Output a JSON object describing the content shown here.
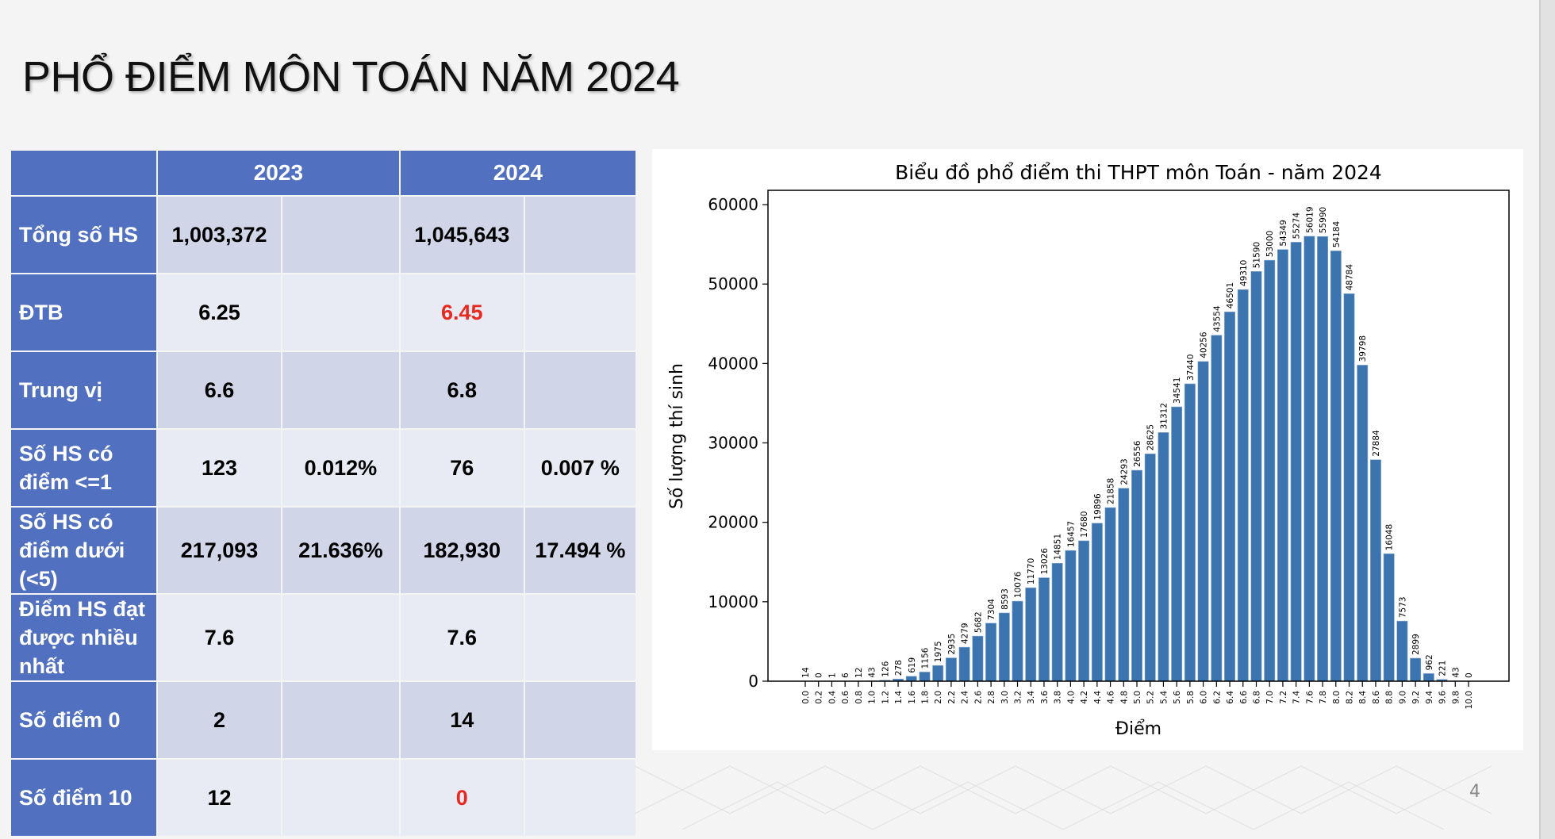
{
  "slide": {
    "title": "PHỔ ĐIỂM MÔN TOÁN NĂM 2024",
    "page_number": "4"
  },
  "table": {
    "headers": [
      "",
      "2023",
      "2024"
    ],
    "rows": [
      {
        "label": "Tổng số HS",
        "c2023": "1,003,372",
        "p2023": "",
        "c2024": "1,045,643",
        "p2024": ""
      },
      {
        "label": "ĐTB",
        "c2023": "6.25",
        "p2023": "",
        "c2024": "6.45",
        "p2024": "",
        "highlight_2024": true
      },
      {
        "label": "Trung vị",
        "c2023": "6.6",
        "p2023": "",
        "c2024": "6.8",
        "p2024": ""
      },
      {
        "label": "Số HS có điểm <=1",
        "c2023": "123",
        "p2023": "0.012%",
        "c2024": "76",
        "p2024": "0.007 %"
      },
      {
        "label": "Số HS có điểm dưới (<5)",
        "c2023": "217,093",
        "p2023": "21.636%",
        "c2024": "182,930",
        "p2024": "17.494 %"
      },
      {
        "label": "Điểm HS đạt được nhiều nhất",
        "c2023": "7.6",
        "p2023": "",
        "c2024": "7.6",
        "p2024": ""
      },
      {
        "label": "Số điểm 0",
        "c2023": "2",
        "p2023": "",
        "c2024": "14",
        "p2024": ""
      },
      {
        "label": "Số điểm 10",
        "c2023": "12",
        "p2023": "",
        "c2024": "0",
        "p2024": "",
        "highlight_2024": true
      }
    ],
    "colors": {
      "header": "#5170bf",
      "row_dark": "#d0d5e8",
      "row_light": "#e9ebf4",
      "highlight": "#e8291f"
    }
  },
  "chart_data": {
    "type": "bar",
    "title": "Biểu đồ phổ điểm thi THPT môn Toán - năm 2024",
    "xlabel": "Điểm",
    "ylabel": "Số lượng thí sinh",
    "categories": [
      "0.0",
      "0.2",
      "0.4",
      "0.6",
      "0.8",
      "1.0",
      "1.2",
      "1.4",
      "1.6",
      "1.8",
      "2.0",
      "2.2",
      "2.4",
      "2.6",
      "2.8",
      "3.0",
      "3.2",
      "3.4",
      "3.6",
      "3.8",
      "4.0",
      "4.2",
      "4.4",
      "4.6",
      "4.8",
      "5.0",
      "5.2",
      "5.4",
      "5.6",
      "5.8",
      "6.0",
      "6.2",
      "6.4",
      "6.6",
      "6.8",
      "7.0",
      "7.2",
      "7.4",
      "7.6",
      "7.8",
      "8.0",
      "8.2",
      "8.4",
      "8.6",
      "8.8",
      "9.0",
      "9.2",
      "9.4",
      "9.6",
      "9.8",
      "10.0"
    ],
    "values": [
      14,
      0,
      1,
      6,
      12,
      43,
      126,
      278,
      619,
      1156,
      1975,
      2935,
      4279,
      5682,
      7304,
      8593,
      10076,
      11770,
      13026,
      14851,
      16457,
      17680,
      19896,
      21858,
      24293,
      26556,
      28625,
      31312,
      34541,
      37440,
      40256,
      43554,
      46501,
      49310,
      51590,
      53000,
      54349,
      55274,
      56019,
      55990,
      54184,
      48784,
      39798,
      27884,
      16048,
      7573,
      2899,
      962,
      221,
      43,
      0
    ],
    "yticks": [
      0,
      10000,
      20000,
      30000,
      40000,
      50000,
      60000
    ],
    "ylim": [
      0,
      61800
    ],
    "grid": false,
    "bar_color": "#3b74af",
    "data_labels": true
  }
}
